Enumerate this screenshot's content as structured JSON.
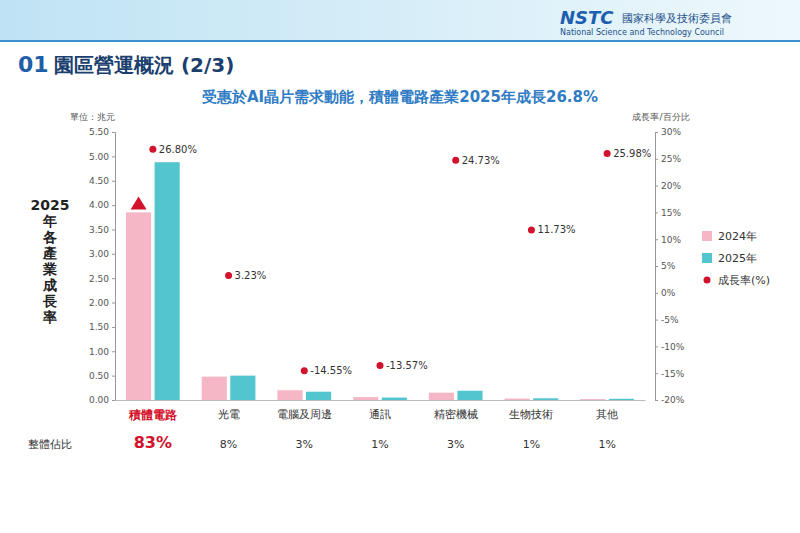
{
  "header": {
    "section": "01",
    "title": "園區營運概況 (2/3)",
    "org": "NSTC",
    "org_name": "國家科學及技術委員會",
    "org_name_en": "National Science and Technology Council"
  },
  "chart_data": {
    "type": "bar",
    "title": "受惠於AI晶片需求動能，積體電路產業2025年成長26.8%",
    "y_label": "2025年各產業成長率",
    "y_unit": "單位：兆元",
    "y2_label": "成長率/百分比",
    "categories": [
      "積體電路",
      "光電",
      "電腦及周邊",
      "通訊",
      "精密機械",
      "生物技術",
      "其他"
    ],
    "series": [
      {
        "name": "2024年",
        "color": "#f5b6c6",
        "values": [
          3.85,
          0.48,
          0.2,
          0.06,
          0.15,
          0.03,
          0.02
        ]
      },
      {
        "name": "2025年",
        "color": "#52c5cf",
        "values": [
          4.88,
          0.5,
          0.17,
          0.05,
          0.19,
          0.035,
          0.025
        ]
      },
      {
        "name": "成長率(%)",
        "type": "scatter",
        "axis": "y2",
        "color": "#d3122b",
        "marker": "circle",
        "values": [
          26.8,
          3.23,
          -14.55,
          -13.57,
          24.73,
          11.73,
          25.98
        ],
        "value_labels": [
          "26.80%",
          "3.23%",
          "-14.55%",
          "-13.57%",
          "24.73%",
          "11.73%",
          "25.98%"
        ]
      }
    ],
    "ylim": [
      0,
      5.5
    ],
    "yticks": [
      {
        "value": 0,
        "label": "0.00"
      },
      {
        "value": 0.5,
        "label": "0.50"
      },
      {
        "value": 1,
        "label": "1.00"
      },
      {
        "value": 1.5,
        "label": "1.50"
      },
      {
        "value": 2,
        "label": "2.00"
      },
      {
        "value": 2.5,
        "label": "2.50"
      },
      {
        "value": 3,
        "label": "3.00"
      },
      {
        "value": 3.5,
        "label": "3.50"
      },
      {
        "value": 4,
        "label": "4.00"
      },
      {
        "value": 4.5,
        "label": "4.50"
      },
      {
        "value": 5,
        "label": "5.00"
      },
      {
        "value": 5.5,
        "label": "5.50"
      }
    ],
    "y2lim": [
      -20,
      30
    ],
    "y2ticks": [
      {
        "value": 30,
        "label": "30%"
      },
      {
        "value": 25,
        "label": "25%"
      },
      {
        "value": 20,
        "label": "20%"
      },
      {
        "value": 15,
        "label": "15%"
      },
      {
        "value": 10,
        "label": "10%"
      },
      {
        "value": 5,
        "label": "5%"
      },
      {
        "value": 0,
        "label": "0%"
      },
      {
        "value": -5,
        "label": "-5%"
      },
      {
        "value": -10,
        "label": "-10%"
      },
      {
        "value": -15,
        "label": "-15%"
      },
      {
        "value": -20,
        "label": "-20%"
      }
    ],
    "share_title": "整體佔比",
    "share_labels": [
      "83%",
      "8%",
      "3%",
      "1%",
      "3%",
      "1%",
      "1%"
    ],
    "legend": "right",
    "grid": false
  }
}
